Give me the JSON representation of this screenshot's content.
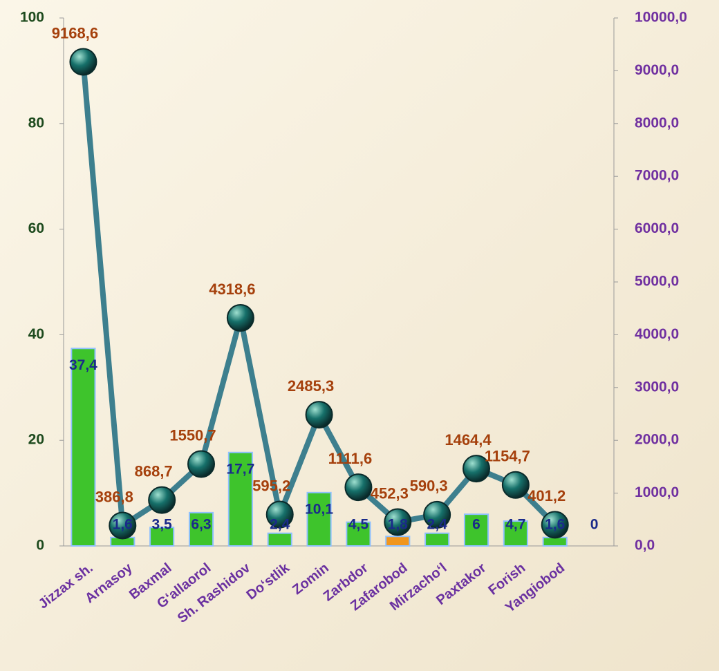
{
  "chart_data": {
    "type": "combo",
    "categories": [
      "Jizzax sh.",
      "Arnasoy",
      "Baxmal",
      "G‘allaorol",
      "Sh. Rashidov",
      "Do‘stlik",
      "Zomin",
      "Zarbdor",
      "Zafarobod",
      "Mirzacho‘l",
      "Paxtakor",
      "Forish",
      "Yangiobod",
      null
    ],
    "ylim": [
      0,
      100
    ],
    "yticks": [
      0,
      20,
      40,
      60,
      80,
      100
    ],
    "y2lim": [
      0,
      10000
    ],
    "y2ticks": [
      {
        "value": 0,
        "label": "0,0"
      },
      {
        "value": 1000,
        "label": "1000,0"
      },
      {
        "value": 2000,
        "label": "2000,0"
      },
      {
        "value": 3000,
        "label": "3000,0"
      },
      {
        "value": 4000,
        "label": "4000,0"
      },
      {
        "value": 5000,
        "label": "5000,0"
      },
      {
        "value": 6000,
        "label": "6000,0"
      },
      {
        "value": 7000,
        "label": "7000,0"
      },
      {
        "value": 8000,
        "label": "8000,0"
      },
      {
        "value": 9000,
        "label": "9000,0"
      },
      {
        "value": 10000,
        "label": "10000,0"
      }
    ],
    "series": [
      {
        "type": "bar",
        "color": "#3ec42c",
        "colors": [
          "#3ec42c",
          "#3ec42c",
          "#3ec42c",
          "#3ec42c",
          "#3ec42c",
          "#3ec42c",
          "#3ec42c",
          "#3ec42c",
          "#f0961e",
          "#3ec42c",
          "#3ec42c",
          "#3ec42c",
          "#3ec42c",
          "#3ec42c"
        ],
        "values": [
          37.4,
          1.6,
          3.5,
          6.3,
          17.7,
          2.4,
          10.1,
          4.5,
          1.8,
          2.4,
          6,
          4.7,
          1.6,
          0
        ],
        "value_labels": [
          "37,4",
          "1,6",
          "3,5",
          "6,3",
          "17,7",
          "2,4",
          "10,1",
          "4,5",
          "1,8",
          "2,4",
          "6",
          "4,7",
          "1,6",
          "0"
        ]
      },
      {
        "type": "line",
        "axis": "y2",
        "color": "#3d7f8e",
        "marker_color": "#16706a",
        "values": [
          9168.6,
          386.8,
          868.7,
          1550.7,
          4318.6,
          595.2,
          2485.3,
          1111.6,
          452.3,
          590.3,
          1464.4,
          1154.7,
          401.2,
          null
        ],
        "value_labels": [
          "9168,6",
          "386,8",
          "868,7",
          "1550,7",
          "4318,6",
          "595,2",
          "2485,3",
          "1111,6",
          "452,3",
          "590,3",
          "1464,4",
          "1154,7",
          "401,2",
          null
        ]
      }
    ]
  }
}
